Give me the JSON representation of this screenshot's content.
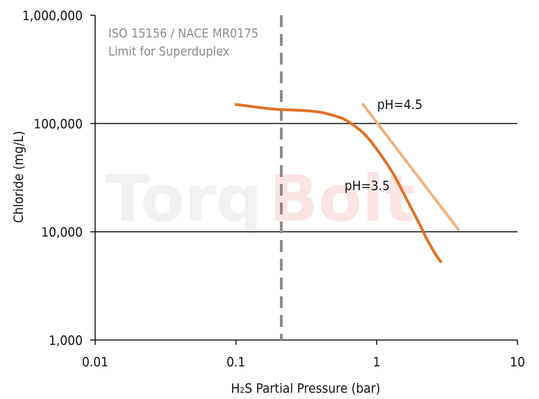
{
  "watermark": {
    "part1": "Torq",
    "part2": "Bolt"
  },
  "chart_data": {
    "type": "line",
    "title": "",
    "xlabel": "H₂S Partial Pressure (bar)",
    "ylabel": "Chloride (mg/L)",
    "x_scale": "log",
    "y_scale": "log",
    "xlim": [
      0.01,
      10
    ],
    "ylim": [
      1000,
      1000000
    ],
    "x_ticks": [
      {
        "value": 0.01,
        "label": "0.01"
      },
      {
        "value": 0.1,
        "label": "0.1"
      },
      {
        "value": 1,
        "label": "1"
      },
      {
        "value": 10,
        "label": "10"
      }
    ],
    "y_ticks": [
      {
        "value": 1000,
        "label": "1,000"
      },
      {
        "value": 10000,
        "label": "10,000"
      },
      {
        "value": 100000,
        "label": "100,000"
      },
      {
        "value": 1000000,
        "label": "1,000,000"
      }
    ],
    "gridlines_y": [
      10000,
      100000
    ],
    "series": [
      {
        "name": "pH=3.5",
        "color": "#e07126",
        "x": [
          0.1,
          0.15,
          0.2,
          0.3,
          0.4,
          0.5,
          0.6,
          0.8,
          1.0,
          1.3,
          1.6,
          2.0,
          2.3,
          2.6,
          2.85
        ],
        "y": [
          150000,
          140000,
          135000,
          132000,
          127000,
          118000,
          108000,
          82000,
          58000,
          35000,
          21000,
          12000,
          8300,
          6300,
          5300
        ]
      },
      {
        "name": "pH=4.5",
        "color": "#f0b27f",
        "x": [
          0.8,
          3.8
        ],
        "y": [
          150000,
          10500
        ]
      }
    ],
    "annotations": [
      {
        "type": "vline",
        "x": 0.21,
        "color": "#8c8c8c",
        "style": "dashed",
        "text": [
          "ISO 15156 / NACE MR0175",
          "Limit for Superduplex"
        ]
      }
    ]
  }
}
